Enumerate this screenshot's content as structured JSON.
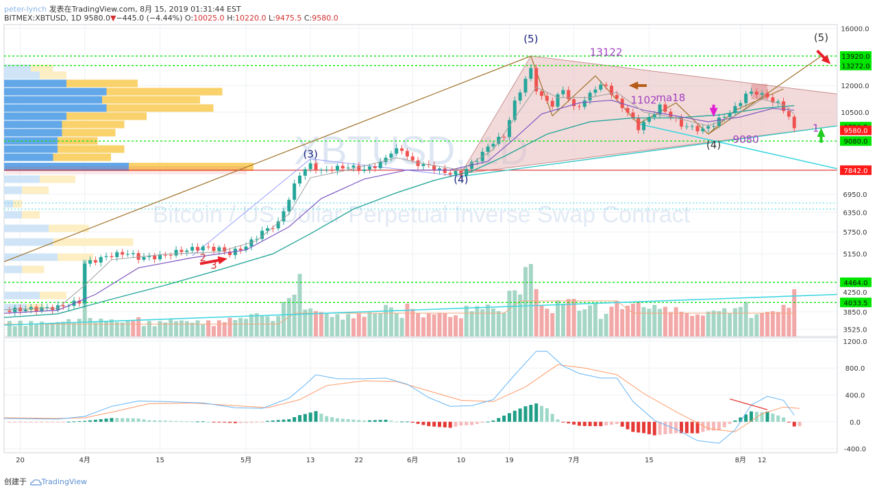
{
  "header": {
    "author": "peter-lynch",
    "published_prefix": "发表在",
    "site": "TradingView.com",
    "date": "8月 15, 2019 01:31:44 EST",
    "symbol": "BITMEX:XBTUSD, 1D",
    "last": "9580.0",
    "change": "−445.0 (−4.44%)",
    "o_label": "O:",
    "o": "10025.0",
    "h_label": "H:",
    "h": "10220.0",
    "l_label": "L:",
    "l": "9475.5",
    "c_label": "C:",
    "c": "9580.0"
  },
  "footer": {
    "prefix": "创建于",
    "brand": "TradingView"
  },
  "colors": {
    "up": "#26a69a",
    "down": "#ef5350",
    "vol_up": "#a5d6c5",
    "vol_down": "#f3a8a8",
    "ma_fast": "#9e9e9e",
    "ma_mid": "#7e57c2",
    "ma_slow": "#26a69a",
    "macd": "#64b5f6",
    "signal": "#ff9966",
    "green_box": "#00e600",
    "red_box": "#ff1a1a",
    "cyan": "#3fd6e0",
    "brown": "#a0722a",
    "triangle_fill": "#e7bcbc"
  },
  "chart_data": [
    {
      "type": "candlestick",
      "watermark_symbol": "XBTUSD, 1D",
      "watermark_desc": "Bitcoin / US Dollar Perpetual Inverse Swap Contract",
      "x_tick_labels": [
        "20",
        "4月",
        "15",
        "5月",
        "13",
        "22",
        "6月",
        "10",
        "19",
        "7月",
        "15",
        "8月",
        "12"
      ],
      "x_tick_days": [
        -12,
        0,
        14,
        30,
        42,
        51,
        61,
        70,
        79,
        91,
        105,
        122,
        126
      ],
      "x_range_days": [
        -15,
        140
      ],
      "y_tick_labels": [
        "16000.0",
        "13920.0",
        "13272.0",
        "12000.0",
        "10500.0",
        "9758.5",
        "9580.0",
        "9080.0",
        "7842.0",
        "6950.0",
        "6350.0",
        "5750.0",
        "5150.0",
        "4464.0",
        "4250.0",
        "4033.5",
        "3850.0",
        "3525.0"
      ],
      "price_labels": [
        {
          "value": 13920.0,
          "text": "13920.0",
          "style": "green"
        },
        {
          "value": 13272.0,
          "text": "13272.0",
          "style": "green"
        },
        {
          "value": 9758.5,
          "text": "9758.5",
          "style": "green"
        },
        {
          "value": 9580.0,
          "text": "9580.0",
          "style": "red"
        },
        {
          "value": 9080.0,
          "text": "9080.0",
          "style": "green"
        },
        {
          "value": 7842.0,
          "text": "7842.0",
          "style": "red"
        },
        {
          "value": 4464.0,
          "text": "4464.0",
          "style": "green"
        },
        {
          "value": 4033.5,
          "text": "4033.5",
          "style": "green"
        }
      ],
      "plain_ticks": [
        16000,
        12000,
        10500,
        6950,
        6350,
        5750,
        5150,
        4250,
        3850,
        3525
      ],
      "y_range": [
        3400,
        16300
      ],
      "y_scale": "log",
      "dotted_levels_green": [
        13920,
        13272,
        9080,
        4464,
        4033.5
      ],
      "dotted_levels_cyan": [
        6650,
        6450
      ],
      "solid_level_red": 7842,
      "close_path": [
        [
          -15,
          3870
        ],
        [
          -10,
          3905
        ],
        [
          -5,
          3935
        ],
        [
          -1,
          4050
        ],
        [
          0,
          4900
        ],
        [
          2,
          4990
        ],
        [
          5,
          5120
        ],
        [
          8,
          5170
        ],
        [
          10,
          5050
        ],
        [
          14,
          5080
        ],
        [
          18,
          5230
        ],
        [
          22,
          5320
        ],
        [
          25,
          5270
        ],
        [
          27,
          5160
        ],
        [
          30,
          5350
        ],
        [
          33,
          5750
        ],
        [
          36,
          6000
        ],
        [
          38,
          6800
        ],
        [
          40,
          7700
        ],
        [
          42,
          8050
        ],
        [
          44,
          7800
        ],
        [
          46,
          7900
        ],
        [
          49,
          7980
        ],
        [
          52,
          7850
        ],
        [
          55,
          8100
        ],
        [
          57,
          8600
        ],
        [
          59,
          8700
        ],
        [
          61,
          8150
        ],
        [
          64,
          8000
        ],
        [
          67,
          7750
        ],
        [
          70,
          7700
        ],
        [
          73,
          8300
        ],
        [
          76,
          9050
        ],
        [
          78,
          9300
        ],
        [
          80,
          11000
        ],
        [
          82,
          12400
        ],
        [
          83,
          13000
        ],
        [
          84,
          11800
        ],
        [
          85,
          11300
        ],
        [
          87,
          10900
        ],
        [
          89,
          11800
        ],
        [
          91,
          10700
        ],
        [
          93,
          11100
        ],
        [
          95,
          11900
        ],
        [
          97,
          12000
        ],
        [
          99,
          11100
        ],
        [
          101,
          10500
        ],
        [
          103,
          9700
        ],
        [
          105,
          10200
        ],
        [
          107,
          10800
        ],
        [
          109,
          10300
        ],
        [
          111,
          9850
        ],
        [
          113,
          9700
        ],
        [
          115,
          9600
        ],
        [
          117,
          9900
        ],
        [
          119,
          10300
        ],
        [
          121,
          10700
        ],
        [
          123,
          11500
        ],
        [
          125,
          11600
        ],
        [
          127,
          11300
        ],
        [
          129,
          10950
        ],
        [
          131,
          10300
        ],
        [
          132,
          9580
        ]
      ],
      "ma_fast": [
        [
          -15,
          3890
        ],
        [
          -5,
          3920
        ],
        [
          0,
          4400
        ],
        [
          5,
          5000
        ],
        [
          15,
          5140
        ],
        [
          25,
          5200
        ],
        [
          32,
          5500
        ],
        [
          38,
          6300
        ],
        [
          42,
          7550
        ],
        [
          50,
          7900
        ],
        [
          58,
          8350
        ],
        [
          63,
          8100
        ],
        [
          70,
          7850
        ],
        [
          76,
          8700
        ],
        [
          80,
          10200
        ],
        [
          84,
          11900
        ],
        [
          88,
          11300
        ],
        [
          94,
          11300
        ],
        [
          99,
          11600
        ],
        [
          104,
          10500
        ],
        [
          110,
          10200
        ],
        [
          116,
          9800
        ],
        [
          121,
          10300
        ],
        [
          126,
          11200
        ],
        [
          130,
          10900
        ],
        [
          132,
          10400
        ]
      ],
      "ma_mid": [
        [
          -15,
          3820
        ],
        [
          -5,
          3880
        ],
        [
          2,
          4200
        ],
        [
          10,
          4800
        ],
        [
          20,
          5050
        ],
        [
          30,
          5250
        ],
        [
          38,
          5900
        ],
        [
          44,
          6800
        ],
        [
          52,
          7500
        ],
        [
          60,
          7850
        ],
        [
          68,
          7850
        ],
        [
          75,
          8200
        ],
        [
          80,
          9200
        ],
        [
          85,
          10400
        ],
        [
          92,
          11000
        ],
        [
          98,
          11150
        ],
        [
          104,
          10600
        ],
        [
          110,
          10300
        ],
        [
          116,
          10000
        ],
        [
          122,
          10250
        ],
        [
          128,
          10700
        ],
        [
          132,
          10600
        ]
      ],
      "ma_slow": [
        [
          -15,
          3740
        ],
        [
          -5,
          3810
        ],
        [
          5,
          4100
        ],
        [
          15,
          4400
        ],
        [
          25,
          4750
        ],
        [
          35,
          5150
        ],
        [
          42,
          5700
        ],
        [
          50,
          6450
        ],
        [
          58,
          7000
        ],
        [
          65,
          7450
        ],
        [
          72,
          7800
        ],
        [
          78,
          8400
        ],
        [
          86,
          9400
        ],
        [
          94,
          10000
        ],
        [
          102,
          10200
        ],
        [
          110,
          10200
        ],
        [
          118,
          10350
        ],
        [
          126,
          10700
        ],
        [
          132,
          10850
        ]
      ],
      "wave_labels": [
        {
          "day": 42,
          "price": 8350,
          "text": "(3)",
          "color": "#1a237e"
        },
        {
          "day": 70,
          "price": 7350,
          "text": "(4)",
          "color": "#1a237e"
        },
        {
          "day": 83,
          "price": 14900,
          "text": "(5)",
          "color": "#1a237e"
        },
        {
          "day": 97,
          "price": 13950,
          "text": "13122",
          "color": "#a040c0"
        },
        {
          "day": 104,
          "price": 10950,
          "text": "1102",
          "color": "#a040c0"
        },
        {
          "day": 109,
          "price": 11100,
          "text": "ma18",
          "color": "#a040c0"
        },
        {
          "day": 117,
          "price": 8750,
          "text": "(4)",
          "color": "#333333"
        },
        {
          "day": 123,
          "price": 9000,
          "text": "9080",
          "color": "#a040c0"
        },
        {
          "day": 137,
          "price": 15000,
          "text": "(5)",
          "color": "#333333"
        },
        {
          "day": 136,
          "price": 9520,
          "text": "1",
          "color": "#a040c0"
        },
        {
          "day": 22,
          "price": 4960,
          "text": "2",
          "color": "#d32f2f"
        },
        {
          "day": 24,
          "price": 4780,
          "text": "3",
          "color": "#d32f2f"
        }
      ]
    },
    {
      "type": "bar",
      "title": "volume",
      "note": "relative daily volume (0-1 scale, up/down colored)"
    },
    {
      "type": "line",
      "title": "MACD",
      "y_tick_labels": [
        "1200.0",
        "800.0",
        "400.0",
        "0.0",
        "-400.0"
      ],
      "y_ticks": [
        1200,
        800,
        400,
        0,
        -400
      ],
      "y_range": [
        -460,
        1250
      ],
      "macd": [
        [
          -15,
          50
        ],
        [
          -5,
          40
        ],
        [
          0,
          80
        ],
        [
          5,
          230
        ],
        [
          10,
          310
        ],
        [
          15,
          300
        ],
        [
          22,
          280
        ],
        [
          28,
          210
        ],
        [
          33,
          200
        ],
        [
          38,
          350
        ],
        [
          41,
          550
        ],
        [
          43,
          700
        ],
        [
          47,
          640
        ],
        [
          52,
          640
        ],
        [
          56,
          650
        ],
        [
          60,
          560
        ],
        [
          64,
          360
        ],
        [
          68,
          230
        ],
        [
          72,
          240
        ],
        [
          76,
          330
        ],
        [
          80,
          700
        ],
        [
          84,
          1050
        ],
        [
          86,
          1050
        ],
        [
          89,
          830
        ],
        [
          92,
          720
        ],
        [
          96,
          650
        ],
        [
          99,
          650
        ],
        [
          102,
          300
        ],
        [
          106,
          20
        ],
        [
          110,
          -110
        ],
        [
          114,
          -280
        ],
        [
          118,
          -320
        ],
        [
          121,
          -120
        ],
        [
          124,
          250
        ],
        [
          127,
          380
        ],
        [
          130,
          320
        ],
        [
          132,
          100
        ]
      ],
      "signal": [
        [
          -15,
          60
        ],
        [
          -5,
          50
        ],
        [
          0,
          60
        ],
        [
          6,
          160
        ],
        [
          12,
          270
        ],
        [
          20,
          280
        ],
        [
          28,
          240
        ],
        [
          34,
          210
        ],
        [
          40,
          330
        ],
        [
          45,
          540
        ],
        [
          52,
          610
        ],
        [
          58,
          600
        ],
        [
          64,
          460
        ],
        [
          70,
          320
        ],
        [
          76,
          300
        ],
        [
          82,
          520
        ],
        [
          88,
          850
        ],
        [
          93,
          800
        ],
        [
          99,
          700
        ],
        [
          104,
          420
        ],
        [
          110,
          150
        ],
        [
          116,
          -100
        ],
        [
          121,
          -150
        ],
        [
          126,
          120
        ],
        [
          130,
          220
        ],
        [
          133,
          200
        ]
      ]
    }
  ]
}
